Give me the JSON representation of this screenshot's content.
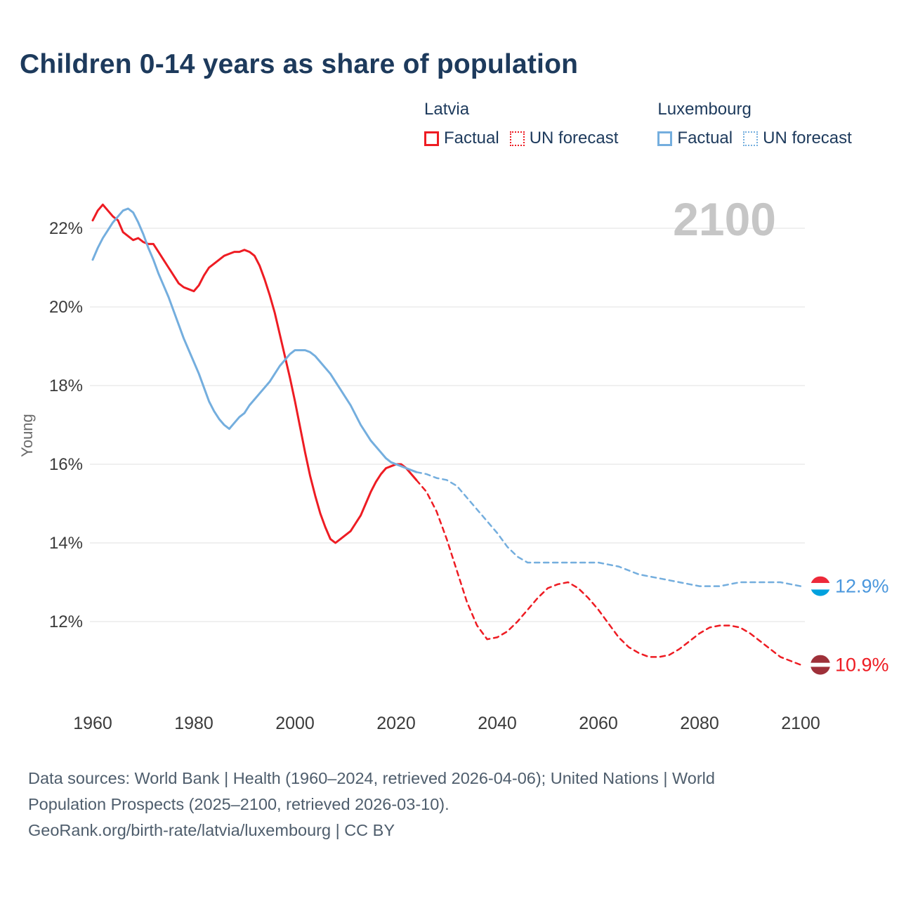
{
  "title": "Children 0-14 years as share of population",
  "colors": {
    "heading": "#1d3a5c",
    "latvia": "#ee1c23",
    "luxembourg": "#74aede",
    "luxembourg_label": "#4a97dd",
    "watermark": "#c6c6c6",
    "grid": "#ebebeb"
  },
  "legend": {
    "groups": [
      {
        "country": "Latvia",
        "items": [
          {
            "label": "Factual",
            "style": "solid"
          },
          {
            "label": "UN forecast",
            "style": "dotted"
          }
        ]
      },
      {
        "country": "Luxembourg",
        "items": [
          {
            "label": "Factual",
            "style": "solid"
          },
          {
            "label": "UN forecast",
            "style": "dotted"
          }
        ]
      }
    ]
  },
  "footer": {
    "lines": [
      "Data sources: World Bank | Health (1960–2024, retrieved 2026-04-06); United Nations | World",
      "Population Prospects (2025–2100, retrieved 2026-03-10).",
      "GeoRank.org/birth-rate/latvia/luxembourg | CC BY"
    ]
  },
  "chart_data": {
    "type": "line",
    "title": "Children 0-14 years as share of population",
    "ylabel": "Young",
    "watermark": "2100",
    "grid": "horizontal",
    "legend_position": "top-right",
    "xlim": [
      1955,
      2115
    ],
    "ylim": [
      10.5,
      23
    ],
    "yticks": [
      12,
      14,
      16,
      18,
      20,
      22
    ],
    "xticks": [
      1960,
      1980,
      2000,
      2020,
      2040,
      2060,
      2080,
      2100
    ],
    "series": [
      {
        "id": "latvia-factual",
        "name": "Latvia Factual",
        "country": "Latvia",
        "kind": "factual",
        "style": "solid",
        "color": "#ee1c23",
        "points": [
          [
            1960,
            22.2
          ],
          [
            1961,
            22.45
          ],
          [
            1962,
            22.6
          ],
          [
            1963,
            22.45
          ],
          [
            1964,
            22.3
          ],
          [
            1965,
            22.2
          ],
          [
            1966,
            21.9
          ],
          [
            1967,
            21.8
          ],
          [
            1968,
            21.7
          ],
          [
            1969,
            21.75
          ],
          [
            1970,
            21.65
          ],
          [
            1971,
            21.6
          ],
          [
            1972,
            21.6
          ],
          [
            1973,
            21.4
          ],
          [
            1974,
            21.2
          ],
          [
            1975,
            21.0
          ],
          [
            1976,
            20.8
          ],
          [
            1977,
            20.6
          ],
          [
            1978,
            20.5
          ],
          [
            1979,
            20.45
          ],
          [
            1980,
            20.4
          ],
          [
            1981,
            20.55
          ],
          [
            1982,
            20.8
          ],
          [
            1983,
            21.0
          ],
          [
            1984,
            21.1
          ],
          [
            1985,
            21.2
          ],
          [
            1986,
            21.3
          ],
          [
            1987,
            21.35
          ],
          [
            1988,
            21.4
          ],
          [
            1989,
            21.4
          ],
          [
            1990,
            21.45
          ],
          [
            1991,
            21.4
          ],
          [
            1992,
            21.3
          ],
          [
            1993,
            21.05
          ],
          [
            1994,
            20.7
          ],
          [
            1995,
            20.3
          ],
          [
            1996,
            19.85
          ],
          [
            1997,
            19.3
          ],
          [
            1998,
            18.75
          ],
          [
            1999,
            18.2
          ],
          [
            2000,
            17.6
          ],
          [
            2001,
            16.95
          ],
          [
            2002,
            16.3
          ],
          [
            2003,
            15.7
          ],
          [
            2004,
            15.2
          ],
          [
            2005,
            14.75
          ],
          [
            2006,
            14.4
          ],
          [
            2007,
            14.1
          ],
          [
            2008,
            14.0
          ],
          [
            2009,
            14.1
          ],
          [
            2010,
            14.2
          ],
          [
            2011,
            14.3
          ],
          [
            2012,
            14.5
          ],
          [
            2013,
            14.7
          ],
          [
            2014,
            15.0
          ],
          [
            2015,
            15.3
          ],
          [
            2016,
            15.55
          ],
          [
            2017,
            15.75
          ],
          [
            2018,
            15.9
          ],
          [
            2019,
            15.95
          ],
          [
            2020,
            16.0
          ],
          [
            2021,
            16.0
          ],
          [
            2022,
            15.9
          ],
          [
            2023,
            15.75
          ],
          [
            2024,
            15.6
          ]
        ]
      },
      {
        "id": "latvia-forecast",
        "name": "Latvia UN forecast",
        "country": "Latvia",
        "kind": "forecast",
        "style": "dashed",
        "color": "#ee1c23",
        "points": [
          [
            2024,
            15.6
          ],
          [
            2026,
            15.3
          ],
          [
            2028,
            14.8
          ],
          [
            2030,
            14.1
          ],
          [
            2032,
            13.3
          ],
          [
            2034,
            12.5
          ],
          [
            2036,
            11.9
          ],
          [
            2038,
            11.55
          ],
          [
            2040,
            11.6
          ],
          [
            2042,
            11.75
          ],
          [
            2044,
            12.0
          ],
          [
            2046,
            12.3
          ],
          [
            2048,
            12.6
          ],
          [
            2050,
            12.85
          ],
          [
            2052,
            12.95
          ],
          [
            2054,
            13.0
          ],
          [
            2056,
            12.85
          ],
          [
            2058,
            12.6
          ],
          [
            2060,
            12.3
          ],
          [
            2062,
            11.95
          ],
          [
            2064,
            11.6
          ],
          [
            2066,
            11.35
          ],
          [
            2068,
            11.2
          ],
          [
            2070,
            11.1
          ],
          [
            2072,
            11.1
          ],
          [
            2074,
            11.15
          ],
          [
            2076,
            11.3
          ],
          [
            2078,
            11.5
          ],
          [
            2080,
            11.7
          ],
          [
            2082,
            11.85
          ],
          [
            2084,
            11.9
          ],
          [
            2086,
            11.9
          ],
          [
            2088,
            11.85
          ],
          [
            2090,
            11.7
          ],
          [
            2092,
            11.5
          ],
          [
            2094,
            11.3
          ],
          [
            2096,
            11.1
          ],
          [
            2098,
            11.0
          ],
          [
            2100,
            10.9
          ]
        ]
      },
      {
        "id": "luxembourg-factual",
        "name": "Luxembourg Factual",
        "country": "Luxembourg",
        "kind": "factual",
        "style": "solid",
        "color": "#74aede",
        "points": [
          [
            1960,
            21.2
          ],
          [
            1961,
            21.5
          ],
          [
            1962,
            21.75
          ],
          [
            1963,
            21.95
          ],
          [
            1964,
            22.15
          ],
          [
            1965,
            22.3
          ],
          [
            1966,
            22.45
          ],
          [
            1967,
            22.5
          ],
          [
            1968,
            22.4
          ],
          [
            1969,
            22.15
          ],
          [
            1970,
            21.85
          ],
          [
            1971,
            21.5
          ],
          [
            1972,
            21.2
          ],
          [
            1973,
            20.85
          ],
          [
            1974,
            20.55
          ],
          [
            1975,
            20.25
          ],
          [
            1976,
            19.9
          ],
          [
            1977,
            19.55
          ],
          [
            1978,
            19.2
          ],
          [
            1979,
            18.9
          ],
          [
            1980,
            18.6
          ],
          [
            1981,
            18.3
          ],
          [
            1982,
            17.95
          ],
          [
            1983,
            17.6
          ],
          [
            1984,
            17.35
          ],
          [
            1985,
            17.15
          ],
          [
            1986,
            17.0
          ],
          [
            1987,
            16.9
          ],
          [
            1988,
            17.05
          ],
          [
            1989,
            17.2
          ],
          [
            1990,
            17.3
          ],
          [
            1991,
            17.5
          ],
          [
            1992,
            17.65
          ],
          [
            1993,
            17.8
          ],
          [
            1994,
            17.95
          ],
          [
            1995,
            18.1
          ],
          [
            1996,
            18.3
          ],
          [
            1997,
            18.5
          ],
          [
            1998,
            18.65
          ],
          [
            1999,
            18.8
          ],
          [
            2000,
            18.9
          ],
          [
            2001,
            18.9
          ],
          [
            2002,
            18.9
          ],
          [
            2003,
            18.85
          ],
          [
            2004,
            18.75
          ],
          [
            2005,
            18.6
          ],
          [
            2006,
            18.45
          ],
          [
            2007,
            18.3
          ],
          [
            2008,
            18.1
          ],
          [
            2009,
            17.9
          ],
          [
            2010,
            17.7
          ],
          [
            2011,
            17.5
          ],
          [
            2012,
            17.25
          ],
          [
            2013,
            17.0
          ],
          [
            2014,
            16.8
          ],
          [
            2015,
            16.6
          ],
          [
            2016,
            16.45
          ],
          [
            2017,
            16.3
          ],
          [
            2018,
            16.15
          ],
          [
            2019,
            16.05
          ],
          [
            2020,
            16.0
          ],
          [
            2021,
            15.95
          ],
          [
            2022,
            15.9
          ],
          [
            2023,
            15.85
          ],
          [
            2024,
            15.8
          ]
        ]
      },
      {
        "id": "luxembourg-forecast",
        "name": "Luxembourg UN forecast",
        "country": "Luxembourg",
        "kind": "forecast",
        "style": "dashed",
        "color": "#74aede",
        "points": [
          [
            2024,
            15.8
          ],
          [
            2026,
            15.75
          ],
          [
            2028,
            15.65
          ],
          [
            2030,
            15.6
          ],
          [
            2032,
            15.45
          ],
          [
            2034,
            15.15
          ],
          [
            2036,
            14.85
          ],
          [
            2038,
            14.55
          ],
          [
            2040,
            14.25
          ],
          [
            2042,
            13.9
          ],
          [
            2044,
            13.65
          ],
          [
            2046,
            13.5
          ],
          [
            2048,
            13.5
          ],
          [
            2050,
            13.5
          ],
          [
            2052,
            13.5
          ],
          [
            2054,
            13.5
          ],
          [
            2056,
            13.5
          ],
          [
            2058,
            13.5
          ],
          [
            2060,
            13.5
          ],
          [
            2062,
            13.45
          ],
          [
            2064,
            13.4
          ],
          [
            2066,
            13.3
          ],
          [
            2068,
            13.2
          ],
          [
            2070,
            13.15
          ],
          [
            2072,
            13.1
          ],
          [
            2074,
            13.05
          ],
          [
            2076,
            13.0
          ],
          [
            2078,
            12.95
          ],
          [
            2080,
            12.9
          ],
          [
            2082,
            12.9
          ],
          [
            2084,
            12.9
          ],
          [
            2086,
            12.95
          ],
          [
            2088,
            13.0
          ],
          [
            2090,
            13.0
          ],
          [
            2092,
            13.0
          ],
          [
            2094,
            13.0
          ],
          [
            2096,
            13.0
          ],
          [
            2098,
            12.95
          ],
          [
            2100,
            12.9
          ]
        ]
      }
    ],
    "end_labels": [
      {
        "country": "Luxembourg",
        "value": "12.9%",
        "y": 12.9,
        "color": "#4a97dd",
        "flag": [
          "#ed2939",
          "#ffffff",
          "#00a1de"
        ],
        "flag_ratios": [
          0.34,
          0.33,
          0.33
        ]
      },
      {
        "country": "Latvia",
        "value": "10.9%",
        "y": 10.9,
        "color": "#ee1c23",
        "flag": [
          "#9e3039",
          "#ffffff",
          "#9e3039"
        ],
        "flag_ratios": [
          0.4,
          0.2,
          0.4
        ]
      }
    ]
  }
}
